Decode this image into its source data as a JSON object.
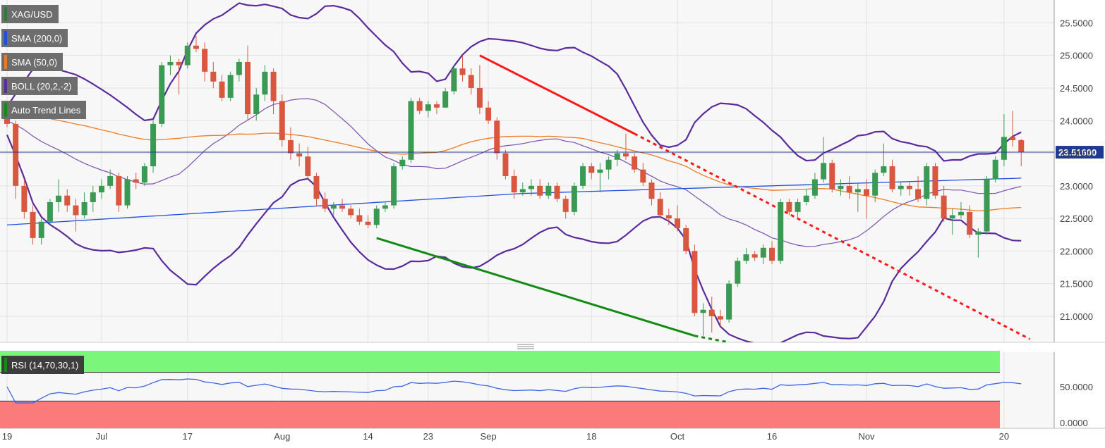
{
  "legend": [
    {
      "label": "XAG/USD",
      "color": "#2e7d32"
    },
    {
      "label": "SMA (200,0)",
      "color": "#1f4fe0"
    },
    {
      "label": "SMA (50,0)",
      "color": "#f07a20"
    },
    {
      "label": "BOLL (20,2,-2)",
      "color": "#5b2a9c"
    },
    {
      "label": "Auto Trend Lines",
      "color": "#138a13"
    }
  ],
  "rsi_label": "RSI (14,70,30,1)",
  "colors": {
    "up": "#3a9a54",
    "down": "#d9573f",
    "sma200": "#1f4fe0",
    "sma50": "#f07a20",
    "boll": "#5b2a9c",
    "trend_down": "#ff1a1a",
    "trend_up": "#138a13",
    "rsi": "#3d63e6",
    "rsi_ob": "#7af77a",
    "rsi_os": "#fb7a7a",
    "last_price": "#1f3a93"
  },
  "chart_data": {
    "type": "candlestick",
    "symbol": "XAG/USD",
    "last_price_label": "23.51600",
    "y_ticks": [
      "25.5000",
      "25.0000",
      "24.5000",
      "24.0000",
      "23.5000",
      "23.0000",
      "22.5000",
      "22.0000",
      "21.5000",
      "21.0000"
    ],
    "ylim": [
      20.6,
      25.85
    ],
    "x_labels": [
      "19",
      "Jul",
      "17",
      "Aug",
      "14",
      "23",
      "Sep",
      "18",
      "Oct",
      "16",
      "Nov",
      "20"
    ],
    "rsi_ticks": [
      "50.0000",
      "0.0000"
    ],
    "candles": [
      [
        24.2,
        24.3,
        23.9,
        23.95
      ],
      [
        23.95,
        24.0,
        22.8,
        23.0
      ],
      [
        23.0,
        23.1,
        22.5,
        22.6
      ],
      [
        22.6,
        22.7,
        22.1,
        22.2
      ],
      [
        22.2,
        22.5,
        22.1,
        22.45
      ],
      [
        22.45,
        22.8,
        22.4,
        22.75
      ],
      [
        22.75,
        23.1,
        22.6,
        22.85
      ],
      [
        22.85,
        22.95,
        22.6,
        22.7
      ],
      [
        22.7,
        22.8,
        22.3,
        22.55
      ],
      [
        22.55,
        22.9,
        22.5,
        22.75
      ],
      [
        22.75,
        23.0,
        22.6,
        22.9
      ],
      [
        22.9,
        23.1,
        22.8,
        23.0
      ],
      [
        23.0,
        23.25,
        22.95,
        23.15
      ],
      [
        23.15,
        23.2,
        22.6,
        22.7
      ],
      [
        22.7,
        23.15,
        22.65,
        23.1
      ],
      [
        23.1,
        23.2,
        22.95,
        23.05
      ],
      [
        23.05,
        23.35,
        23.0,
        23.3
      ],
      [
        23.3,
        24.0,
        23.2,
        23.95
      ],
      [
        23.95,
        24.9,
        23.9,
        24.85
      ],
      [
        24.85,
        25.0,
        24.7,
        24.9
      ],
      [
        24.9,
        24.95,
        24.4,
        24.85
      ],
      [
        24.85,
        25.2,
        24.8,
        25.15
      ],
      [
        25.15,
        25.3,
        25.05,
        25.1
      ],
      [
        25.1,
        25.2,
        24.6,
        24.75
      ],
      [
        24.75,
        24.9,
        24.5,
        24.6
      ],
      [
        24.6,
        24.7,
        24.3,
        24.35
      ],
      [
        24.35,
        24.75,
        24.3,
        24.7
      ],
      [
        24.7,
        24.95,
        24.6,
        24.9
      ],
      [
        24.9,
        25.15,
        24.0,
        24.1
      ],
      [
        24.1,
        24.5,
        24.0,
        24.4
      ],
      [
        24.4,
        24.85,
        24.3,
        24.75
      ],
      [
        24.75,
        24.8,
        24.1,
        24.3
      ],
      [
        24.3,
        24.4,
        23.6,
        23.7
      ],
      [
        23.7,
        23.9,
        23.4,
        23.5
      ],
      [
        23.5,
        23.65,
        23.3,
        23.45
      ],
      [
        23.45,
        23.6,
        23.1,
        23.15
      ],
      [
        23.15,
        23.2,
        22.7,
        22.8
      ],
      [
        22.8,
        22.9,
        22.6,
        22.65
      ],
      [
        22.65,
        22.75,
        22.55,
        22.7
      ],
      [
        22.7,
        22.8,
        22.6,
        22.65
      ],
      [
        22.65,
        22.7,
        22.5,
        22.55
      ],
      [
        22.55,
        22.65,
        22.4,
        22.45
      ],
      [
        22.45,
        22.55,
        22.35,
        22.4
      ],
      [
        22.4,
        22.7,
        22.35,
        22.65
      ],
      [
        22.65,
        22.75,
        22.6,
        22.7
      ],
      [
        22.7,
        23.35,
        22.65,
        23.3
      ],
      [
        23.3,
        23.45,
        23.25,
        23.4
      ],
      [
        23.4,
        24.35,
        23.35,
        24.3
      ],
      [
        24.3,
        24.35,
        24.1,
        24.15
      ],
      [
        24.15,
        24.3,
        24.05,
        24.25
      ],
      [
        24.25,
        24.3,
        24.1,
        24.2
      ],
      [
        24.2,
        24.5,
        24.2,
        24.45
      ],
      [
        24.45,
        24.85,
        24.4,
        24.8
      ],
      [
        24.8,
        25.0,
        24.6,
        24.7
      ],
      [
        24.7,
        24.8,
        24.4,
        24.5
      ],
      [
        24.5,
        24.85,
        24.1,
        24.2
      ],
      [
        24.2,
        24.3,
        23.95,
        24.0
      ],
      [
        24.0,
        24.05,
        23.4,
        23.5
      ],
      [
        23.5,
        23.55,
        23.1,
        23.15
      ],
      [
        23.15,
        23.25,
        22.8,
        22.9
      ],
      [
        22.9,
        23.05,
        22.85,
        22.95
      ],
      [
        22.95,
        23.1,
        22.85,
        23.0
      ],
      [
        23.0,
        23.1,
        22.8,
        22.85
      ],
      [
        22.85,
        23.05,
        22.8,
        23.0
      ],
      [
        23.0,
        23.05,
        22.75,
        22.8
      ],
      [
        22.8,
        22.85,
        22.5,
        22.6
      ],
      [
        22.6,
        23.05,
        22.55,
        23.0
      ],
      [
        23.0,
        23.35,
        22.95,
        23.3
      ],
      [
        23.3,
        23.35,
        23.1,
        23.2
      ],
      [
        23.2,
        23.35,
        22.9,
        23.25
      ],
      [
        23.25,
        23.45,
        23.1,
        23.4
      ],
      [
        23.4,
        23.55,
        23.3,
        23.5
      ],
      [
        23.5,
        23.8,
        23.4,
        23.45
      ],
      [
        23.45,
        23.5,
        23.2,
        23.25
      ],
      [
        23.25,
        23.35,
        23.0,
        23.05
      ],
      [
        23.05,
        23.1,
        22.7,
        22.8
      ],
      [
        22.8,
        22.9,
        22.5,
        22.55
      ],
      [
        22.55,
        22.65,
        22.4,
        22.5
      ],
      [
        22.5,
        22.7,
        22.3,
        22.35
      ],
      [
        22.35,
        22.4,
        21.95,
        22.0
      ],
      [
        22.0,
        22.1,
        21.0,
        21.05
      ],
      [
        21.05,
        21.2,
        20.7,
        21.1
      ],
      [
        21.1,
        21.3,
        20.75,
        21.0
      ],
      [
        21.0,
        21.1,
        20.85,
        20.95
      ],
      [
        20.95,
        21.55,
        20.9,
        21.5
      ],
      [
        21.5,
        21.9,
        21.45,
        21.85
      ],
      [
        21.85,
        22.05,
        21.8,
        21.95
      ],
      [
        21.95,
        22.0,
        21.85,
        21.9
      ],
      [
        21.9,
        22.1,
        21.8,
        22.05
      ],
      [
        22.05,
        22.15,
        21.8,
        21.85
      ],
      [
        21.85,
        22.8,
        21.8,
        22.75
      ],
      [
        22.75,
        22.8,
        22.55,
        22.6
      ],
      [
        22.6,
        22.8,
        22.5,
        22.75
      ],
      [
        22.75,
        22.95,
        22.7,
        22.85
      ],
      [
        22.85,
        23.2,
        22.8,
        23.1
      ],
      [
        23.1,
        23.75,
        23.05,
        23.35
      ],
      [
        23.35,
        23.4,
        22.9,
        22.95
      ],
      [
        22.95,
        23.1,
        22.85,
        23.0
      ],
      [
        23.0,
        23.15,
        22.8,
        22.9
      ],
      [
        22.9,
        23.05,
        22.6,
        22.95
      ],
      [
        22.95,
        23.1,
        22.5,
        22.85
      ],
      [
        22.85,
        23.25,
        22.75,
        23.2
      ],
      [
        23.2,
        23.65,
        23.15,
        23.3
      ],
      [
        23.3,
        23.4,
        22.9,
        22.95
      ],
      [
        22.95,
        23.05,
        22.85,
        23.0
      ],
      [
        23.0,
        23.05,
        22.85,
        22.95
      ],
      [
        22.95,
        23.15,
        22.75,
        22.8
      ],
      [
        22.8,
        23.35,
        22.7,
        23.3
      ],
      [
        23.3,
        23.35,
        22.8,
        22.85
      ],
      [
        22.85,
        23.0,
        22.45,
        22.5
      ],
      [
        22.5,
        22.65,
        22.25,
        22.55
      ],
      [
        22.55,
        22.75,
        22.5,
        22.6
      ],
      [
        22.6,
        22.7,
        22.2,
        22.25
      ],
      [
        22.25,
        22.35,
        21.9,
        22.3
      ],
      [
        22.3,
        23.15,
        22.25,
        23.1
      ],
      [
        23.1,
        23.45,
        23.05,
        23.4
      ],
      [
        23.4,
        24.1,
        23.3,
        23.75
      ],
      [
        23.75,
        24.15,
        23.6,
        23.7
      ],
      [
        23.7,
        23.72,
        23.3,
        23.52
      ]
    ]
  }
}
